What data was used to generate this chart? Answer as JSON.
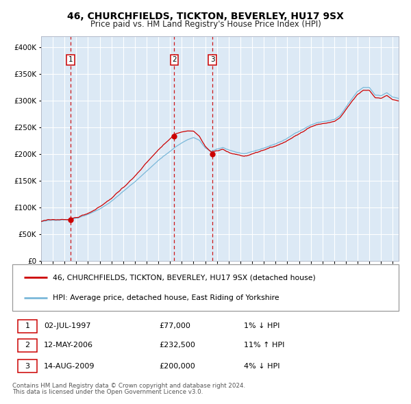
{
  "title": "46, CHURCHFIELDS, TICKTON, BEVERLEY, HU17 9SX",
  "subtitle": "Price paid vs. HM Land Registry's House Price Index (HPI)",
  "sale_points": [
    {
      "date": 1997.5,
      "price": 77000,
      "label": "1"
    },
    {
      "date": 2006.36,
      "price": 232500,
      "label": "2"
    },
    {
      "date": 2009.62,
      "price": 200000,
      "label": "3"
    }
  ],
  "sale_annotations": [
    {
      "label": "1",
      "date_str": "02-JUL-1997",
      "price_str": "£77,000",
      "hpi_str": "1% ↓ HPI"
    },
    {
      "label": "2",
      "date_str": "12-MAY-2006",
      "price_str": "£232,500",
      "hpi_str": "11% ↑ HPI"
    },
    {
      "label": "3",
      "date_str": "14-AUG-2009",
      "price_str": "£200,000",
      "hpi_str": "4% ↓ HPI"
    }
  ],
  "legend_line1": "46, CHURCHFIELDS, TICKTON, BEVERLEY, HU17 9SX (detached house)",
  "legend_line2": "HPI: Average price, detached house, East Riding of Yorkshire",
  "footnote1": "Contains HM Land Registry data © Crown copyright and database right 2024.",
  "footnote2": "This data is licensed under the Open Government Licence v3.0.",
  "hpi_color": "#7ab8d9",
  "price_color": "#cc0000",
  "bg_color": "#dce9f5",
  "grid_color": "#ffffff",
  "ylim": [
    0,
    420000
  ],
  "xlim_start": 1995.0,
  "xlim_end": 2025.5,
  "hpi_anchors": [
    [
      1995.0,
      73000
    ],
    [
      1996.0,
      75000
    ],
    [
      1997.0,
      77500
    ],
    [
      1997.5,
      78500
    ],
    [
      1998.0,
      81000
    ],
    [
      1999.0,
      89000
    ],
    [
      2000.0,
      99000
    ],
    [
      2001.0,
      113000
    ],
    [
      2002.0,
      132000
    ],
    [
      2003.0,
      150000
    ],
    [
      2004.0,
      170000
    ],
    [
      2005.0,
      190000
    ],
    [
      2006.0,
      207000
    ],
    [
      2006.5,
      216000
    ],
    [
      2007.0,
      223000
    ],
    [
      2007.5,
      229000
    ],
    [
      2008.0,
      233000
    ],
    [
      2008.5,
      228000
    ],
    [
      2009.0,
      213000
    ],
    [
      2009.5,
      207000
    ],
    [
      2010.0,
      210000
    ],
    [
      2010.5,
      213000
    ],
    [
      2011.0,
      209000
    ],
    [
      2011.5,
      206000
    ],
    [
      2012.0,
      203000
    ],
    [
      2012.5,
      201000
    ],
    [
      2013.0,
      204000
    ],
    [
      2013.5,
      207000
    ],
    [
      2014.0,
      211000
    ],
    [
      2014.5,
      215000
    ],
    [
      2015.0,
      219000
    ],
    [
      2015.5,
      224000
    ],
    [
      2016.0,
      229000
    ],
    [
      2016.5,
      236000
    ],
    [
      2017.0,
      243000
    ],
    [
      2017.5,
      249000
    ],
    [
      2018.0,
      255000
    ],
    [
      2018.5,
      259000
    ],
    [
      2019.0,
      261000
    ],
    [
      2019.5,
      263000
    ],
    [
      2020.0,
      265000
    ],
    [
      2020.5,
      272000
    ],
    [
      2021.0,
      287000
    ],
    [
      2021.5,
      302000
    ],
    [
      2022.0,
      316000
    ],
    [
      2022.5,
      323000
    ],
    [
      2023.0,
      323000
    ],
    [
      2023.5,
      309000
    ],
    [
      2024.0,
      309000
    ],
    [
      2024.5,
      314000
    ],
    [
      2025.0,
      306000
    ],
    [
      2025.5,
      303000
    ]
  ],
  "sale1_date": 1997.5,
  "sale1_price": 77000,
  "sale2_date": 2006.36,
  "sale2_price": 232500,
  "sale3_date": 2009.62,
  "sale3_price": 200000
}
